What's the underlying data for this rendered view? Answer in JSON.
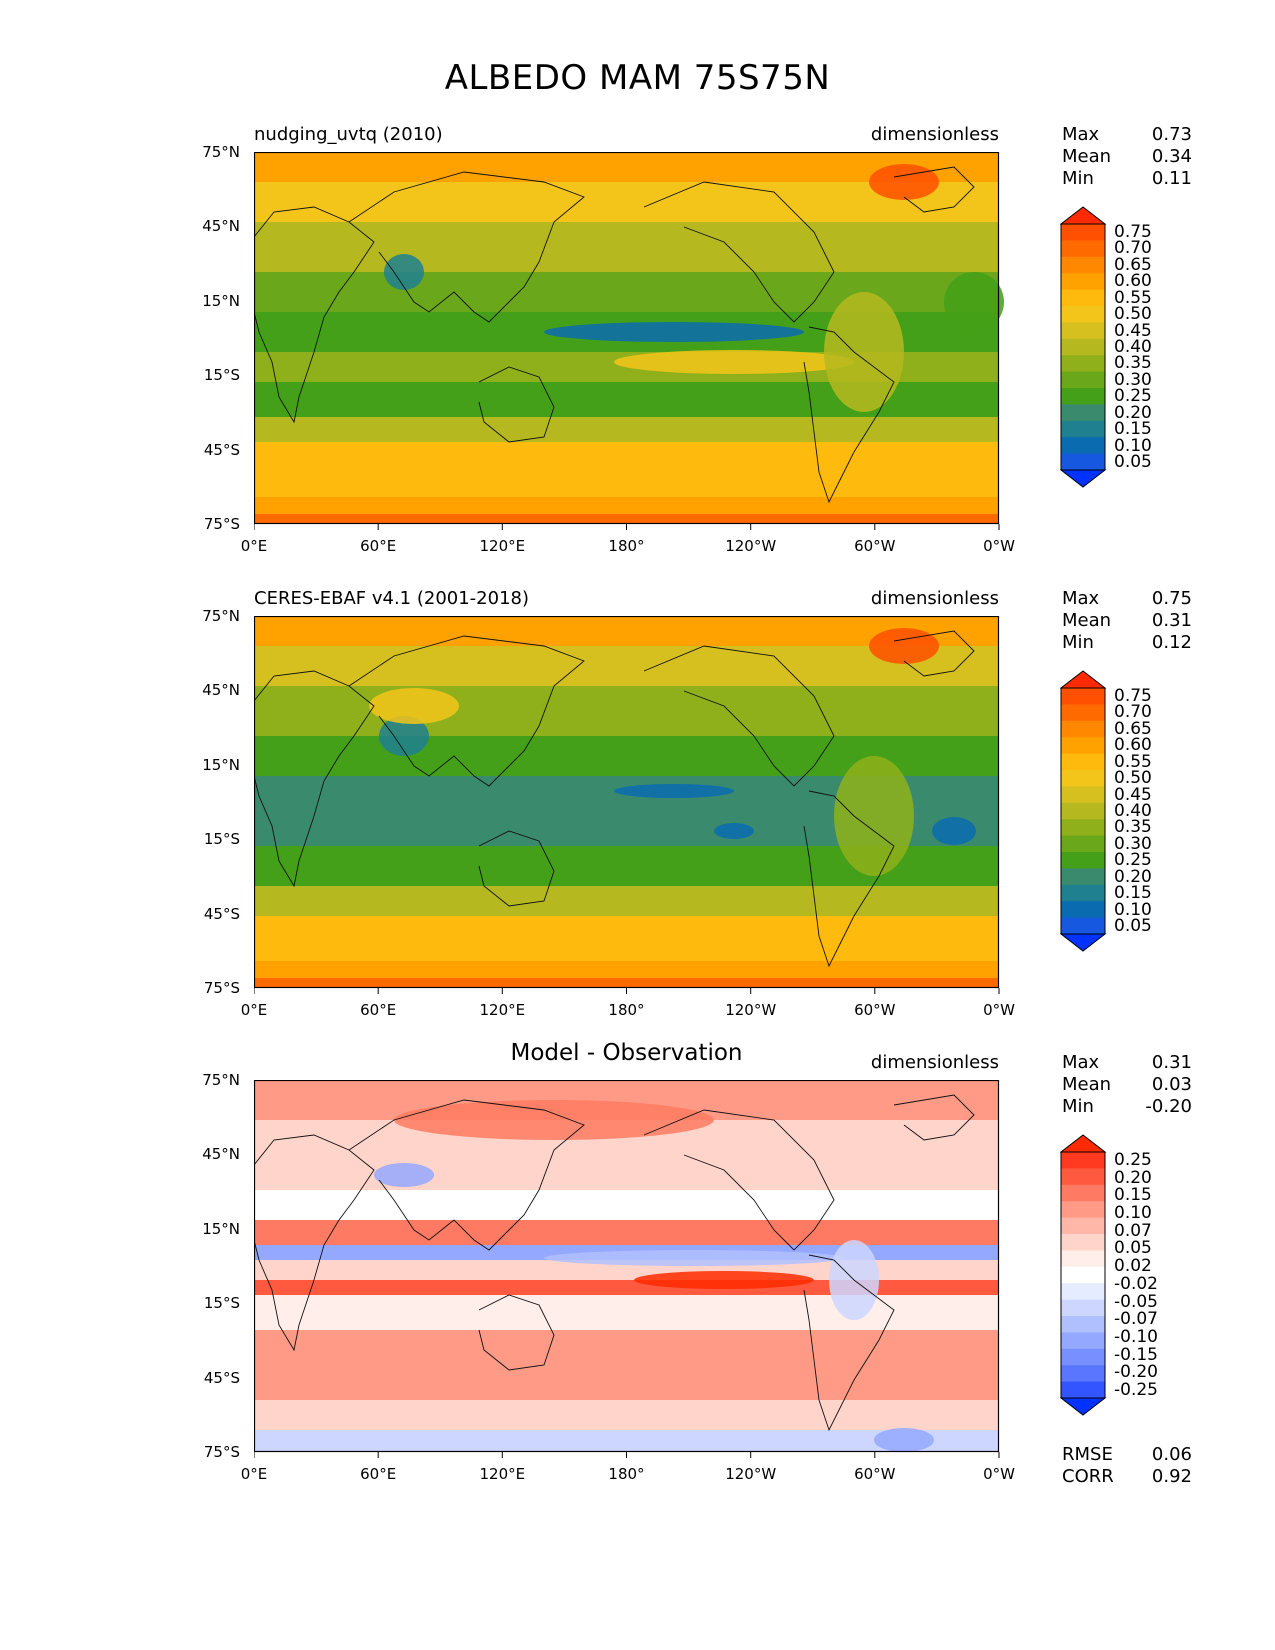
{
  "title": "ALBEDO MAM 75S75N",
  "x_ticks": [
    "0°E",
    "60°E",
    "120°E",
    "180°",
    "120°W",
    "60°W",
    "0°W"
  ],
  "y_ticks": [
    "75°N",
    "45°N",
    "15°N",
    "15°S",
    "45°S",
    "75°S"
  ],
  "panels": [
    {
      "title_left": "nudging_uvtq (2010)",
      "title_center": "",
      "units": "dimensionless",
      "stats": {
        "max_label": "Max",
        "max": "0.73",
        "mean_label": "Mean",
        "mean": "0.34",
        "min_label": "Min",
        "min": "0.11"
      },
      "colorbar_ticks": [
        "0.75",
        "0.70",
        "0.65",
        "0.60",
        "0.55",
        "0.50",
        "0.45",
        "0.40",
        "0.35",
        "0.30",
        "0.25",
        "0.20",
        "0.15",
        "0.10",
        "0.05"
      ],
      "colorbar_colors": [
        "#ff2a00",
        "#ff4f00",
        "#ff6a00",
        "#ff8800",
        "#ffa200",
        "#ffba0e",
        "#f3c51a",
        "#d6c020",
        "#b5b81e",
        "#8fb01a",
        "#6aa71a",
        "#43a018",
        "#3a8a6e",
        "#1f8090",
        "#0a6bb0",
        "#1659e0",
        "#0033ff"
      ]
    },
    {
      "title_left": "CERES-EBAF v4.1 (2001-2018)",
      "title_center": "",
      "units": "dimensionless",
      "stats": {
        "max_label": "Max",
        "max": "0.75",
        "mean_label": "Mean",
        "mean": "0.31",
        "min_label": "Min",
        "min": "0.12"
      },
      "colorbar_ticks": [
        "0.75",
        "0.70",
        "0.65",
        "0.60",
        "0.55",
        "0.50",
        "0.45",
        "0.40",
        "0.35",
        "0.30",
        "0.25",
        "0.20",
        "0.15",
        "0.10",
        "0.05"
      ],
      "colorbar_colors": [
        "#ff2a00",
        "#ff4f00",
        "#ff6a00",
        "#ff8800",
        "#ffa200",
        "#ffba0e",
        "#f3c51a",
        "#d6c020",
        "#b5b81e",
        "#8fb01a",
        "#6aa71a",
        "#43a018",
        "#3a8a6e",
        "#1f8090",
        "#0a6bb0",
        "#1659e0",
        "#0033ff"
      ]
    },
    {
      "title_left": "",
      "title_center": "Model - Observation",
      "units": "dimensionless",
      "stats": {
        "max_label": "Max",
        "max": "0.31",
        "mean_label": "Mean",
        "mean": "0.03",
        "min_label": "Min",
        "min": "-0.20"
      },
      "colorbar_ticks": [
        "0.25",
        "0.20",
        "0.15",
        "0.10",
        "0.07",
        "0.05",
        "0.02",
        "-0.02",
        "-0.05",
        "-0.07",
        "-0.10",
        "-0.15",
        "-0.20",
        "-0.25"
      ],
      "colorbar_colors": [
        "#ff2a00",
        "#ff3a20",
        "#ff5a40",
        "#ff7a62",
        "#ff9a86",
        "#ffb8a8",
        "#ffd4ca",
        "#ffeee9",
        "#ffffff",
        "#e6ecff",
        "#ccd6ff",
        "#b0c0ff",
        "#94a8ff",
        "#7890ff",
        "#5a76ff",
        "#3355ff",
        "#0033ff"
      ],
      "rmse_label": "RMSE",
      "rmse": "0.06",
      "corr_label": "CORR",
      "corr": "0.92"
    }
  ],
  "chart_data": [
    {
      "type": "heatmap",
      "title": "nudging_uvtq (2010)",
      "units": "dimensionless",
      "xlim": [
        0,
        360
      ],
      "ylim": [
        -75,
        75
      ],
      "color_levels": [
        0.05,
        0.1,
        0.15,
        0.2,
        0.25,
        0.3,
        0.35,
        0.4,
        0.45,
        0.5,
        0.55,
        0.6,
        0.65,
        0.7,
        0.75
      ],
      "max": 0.73,
      "mean": 0.34,
      "min": 0.11
    },
    {
      "type": "heatmap",
      "title": "CERES-EBAF v4.1 (2001-2018)",
      "units": "dimensionless",
      "xlim": [
        0,
        360
      ],
      "ylim": [
        -75,
        75
      ],
      "color_levels": [
        0.05,
        0.1,
        0.15,
        0.2,
        0.25,
        0.3,
        0.35,
        0.4,
        0.45,
        0.5,
        0.55,
        0.6,
        0.65,
        0.7,
        0.75
      ],
      "max": 0.75,
      "mean": 0.31,
      "min": 0.12
    },
    {
      "type": "heatmap",
      "title": "Model - Observation",
      "units": "dimensionless",
      "xlim": [
        0,
        360
      ],
      "ylim": [
        -75,
        75
      ],
      "color_levels": [
        -0.25,
        -0.2,
        -0.15,
        -0.1,
        -0.07,
        -0.05,
        -0.02,
        0.02,
        0.05,
        0.07,
        0.1,
        0.15,
        0.2,
        0.25
      ],
      "max": 0.31,
      "mean": 0.03,
      "min": -0.2,
      "rmse": 0.06,
      "corr": 0.92
    }
  ]
}
